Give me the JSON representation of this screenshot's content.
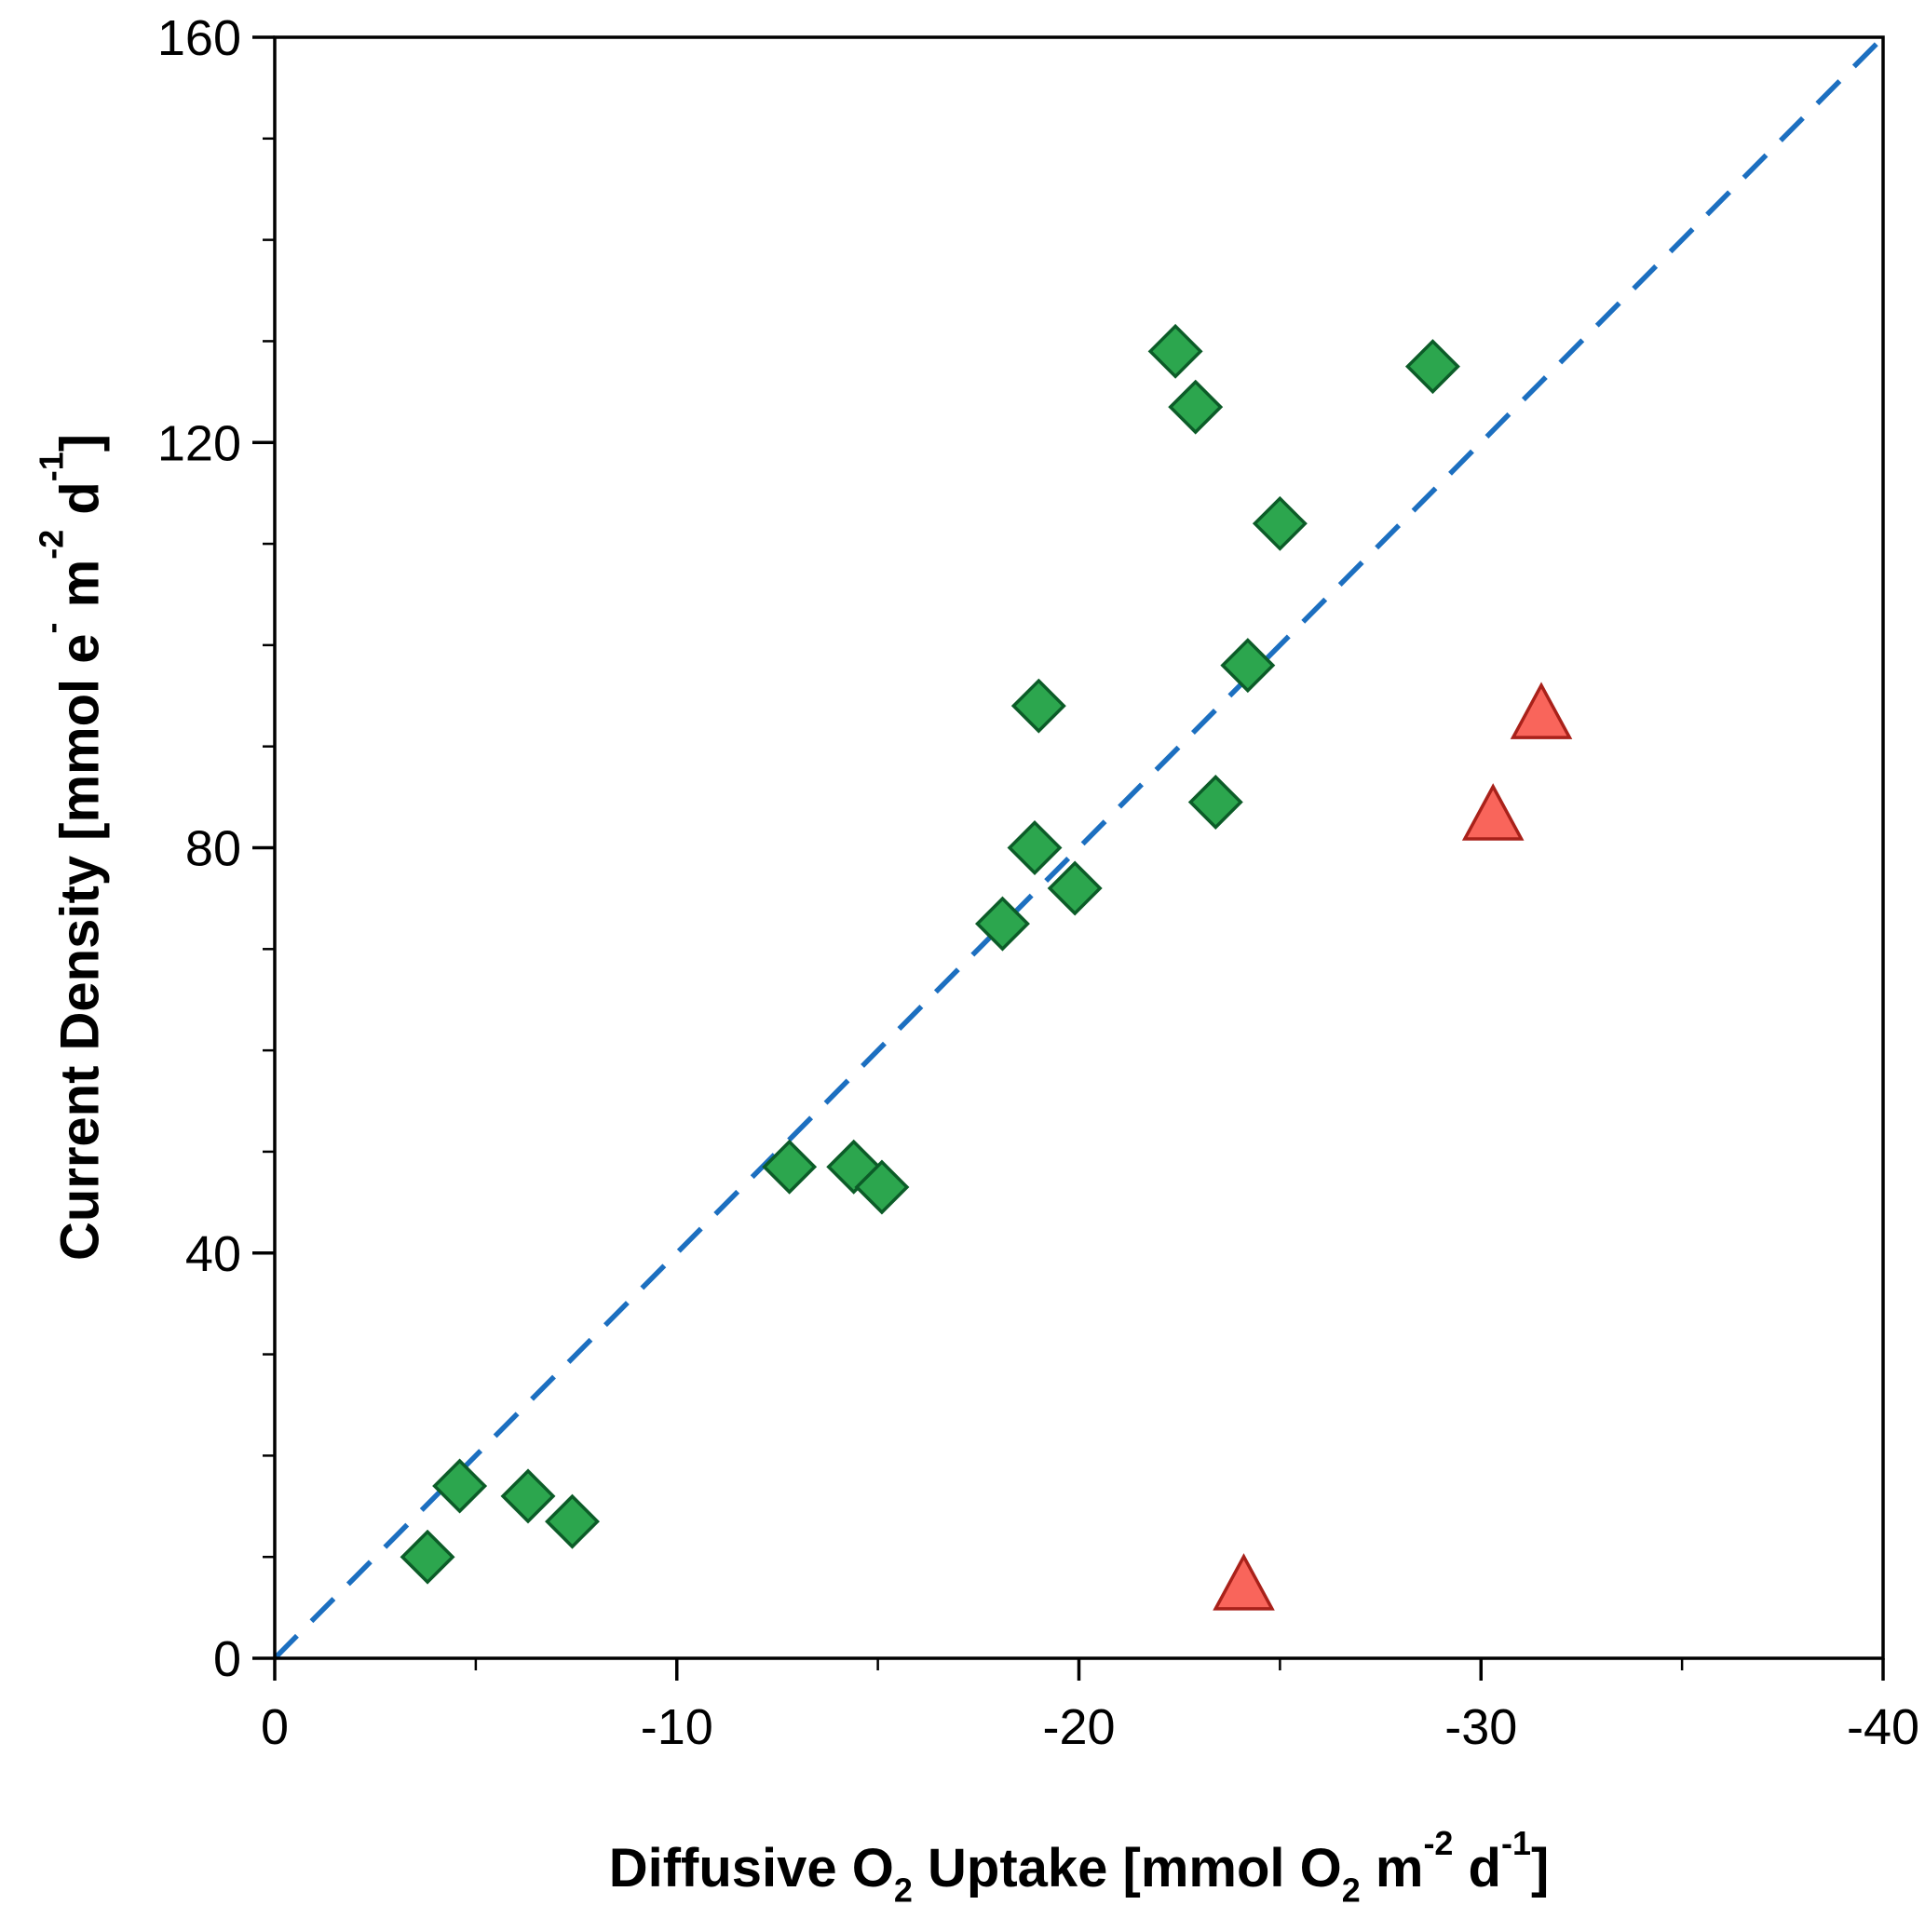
{
  "page": {
    "background": "#ffffff"
  },
  "chart_data": {
    "type": "scatter",
    "title": "",
    "xlabel": "Diffusive O2 Uptake [mmol O2 m-2 d-1]",
    "ylabel": "Current Density [mmol e- m-2 d-1]",
    "xlabel_segments": [
      {
        "t": "Diffusive O"
      },
      {
        "t": "2",
        "style": "sub"
      },
      {
        "t": " Uptake [mmol O"
      },
      {
        "t": "2",
        "style": "sub"
      },
      {
        "t": " m"
      },
      {
        "t": "-2",
        "style": "sup"
      },
      {
        "t": " d"
      },
      {
        "t": "-1",
        "style": "sup"
      },
      {
        "t": "]"
      }
    ],
    "ylabel_segments": [
      {
        "t": "Current Density [mmol e"
      },
      {
        "t": "-",
        "style": "sup"
      },
      {
        "t": " m"
      },
      {
        "t": "-2",
        "style": "sup"
      },
      {
        "t": " d"
      },
      {
        "t": "-1",
        "style": "sup"
      },
      {
        "t": "]"
      }
    ],
    "xlim": [
      0,
      -40
    ],
    "ylim": [
      0,
      160
    ],
    "x_ticks": [
      0,
      -10,
      -20,
      -30,
      -40
    ],
    "x_minor_ticks": [
      -5,
      -15,
      -25,
      -35
    ],
    "y_ticks": [
      0,
      40,
      80,
      120,
      160
    ],
    "y_minor_ticks": [
      10,
      20,
      30,
      50,
      60,
      70,
      90,
      100,
      110,
      130,
      140,
      150
    ],
    "grid": false,
    "legend": "none",
    "frame": true,
    "axis_color": "#000000",
    "reference_line": {
      "type": "dashed",
      "color": "#1c6fc0",
      "from": [
        0,
        0
      ],
      "to": [
        -40,
        160
      ]
    },
    "series": [
      {
        "name": "green-diamonds",
        "marker": "diamond",
        "fill": "#2ca64e",
        "edge": "#0c5c28",
        "points": [
          [
            -3.8,
            10
          ],
          [
            -4.6,
            17
          ],
          [
            -6.3,
            16
          ],
          [
            -7.4,
            13.5
          ],
          [
            -12.8,
            48.5
          ],
          [
            -14.4,
            48.5
          ],
          [
            -15.1,
            46.5
          ],
          [
            -18.1,
            72.5
          ],
          [
            -18.9,
            80
          ],
          [
            -19.0,
            94
          ],
          [
            -19.9,
            76
          ],
          [
            -22.4,
            129
          ],
          [
            -22.9,
            123.5
          ],
          [
            -23.4,
            84.5
          ],
          [
            -24.2,
            98
          ],
          [
            -25.0,
            112
          ],
          [
            -28.8,
            127.5
          ]
        ]
      },
      {
        "name": "red-triangles",
        "marker": "triangle",
        "fill": "#f9655b",
        "edge": "#a9211a",
        "points": [
          [
            -24.1,
            7
          ],
          [
            -30.3,
            83
          ],
          [
            -31.5,
            93
          ]
        ]
      }
    ]
  }
}
